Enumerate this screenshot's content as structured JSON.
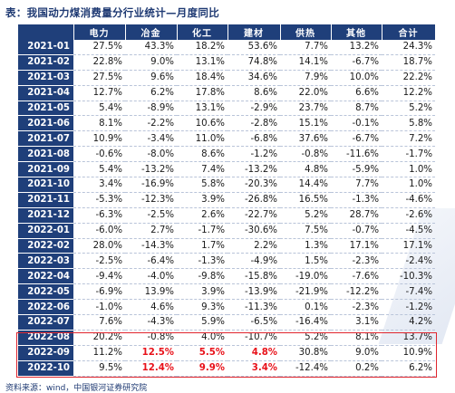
{
  "title": "表：我国动力煤消费量分行业统计—月度同比",
  "columns": [
    "电力",
    "冶金",
    "化工",
    "建材",
    "供热",
    "其他",
    "合计"
  ],
  "rows": [
    {
      "month": "2021-01",
      "values": [
        "27.5%",
        "43.3%",
        "18.2%",
        "53.6%",
        "7.7%",
        "13.2%",
        "24.3%"
      ]
    },
    {
      "month": "2021-02",
      "values": [
        "22.8%",
        "9.0%",
        "13.1%",
        "74.8%",
        "14.1%",
        "-6.7%",
        "18.7%"
      ]
    },
    {
      "month": "2021-03",
      "values": [
        "27.5%",
        "9.6%",
        "18.4%",
        "34.6%",
        "7.9%",
        "10.0%",
        "22.2%"
      ]
    },
    {
      "month": "2021-04",
      "values": [
        "12.7%",
        "6.2%",
        "17.8%",
        "8.6%",
        "22.0%",
        "6.6%",
        "12.2%"
      ]
    },
    {
      "month": "2021-05",
      "values": [
        "5.4%",
        "-8.9%",
        "13.1%",
        "-2.9%",
        "23.7%",
        "8.7%",
        "5.2%"
      ]
    },
    {
      "month": "2021-06",
      "values": [
        "8.1%",
        "-2.2%",
        "10.6%",
        "-2.8%",
        "15.1%",
        "-0.1%",
        "5.8%"
      ]
    },
    {
      "month": "2021-07",
      "values": [
        "10.9%",
        "-3.4%",
        "11.0%",
        "-6.8%",
        "37.6%",
        "-6.7%",
        "7.2%"
      ]
    },
    {
      "month": "2021-08",
      "values": [
        "-0.6%",
        "-8.0%",
        "8.6%",
        "-1.2%",
        "-0.8%",
        "-11.6%",
        "-1.7%"
      ]
    },
    {
      "month": "2021-09",
      "values": [
        "5.4%",
        "-13.2%",
        "7.4%",
        "-13.2%",
        "4.8%",
        "-5.9%",
        "1.0%"
      ]
    },
    {
      "month": "2021-10",
      "values": [
        "3.4%",
        "-16.9%",
        "5.8%",
        "-20.3%",
        "14.4%",
        "7.7%",
        "1.0%"
      ]
    },
    {
      "month": "2021-11",
      "values": [
        "-5.3%",
        "-12.3%",
        "3.9%",
        "-26.8%",
        "16.5%",
        "-1.3%",
        "-4.6%"
      ]
    },
    {
      "month": "2021-12",
      "values": [
        "-6.3%",
        "-2.5%",
        "2.6%",
        "-22.7%",
        "5.2%",
        "28.7%",
        "-2.6%"
      ]
    },
    {
      "month": "2022-01",
      "values": [
        "-6.0%",
        "2.7%",
        "-1.7%",
        "-30.6%",
        "7.5%",
        "-0.7%",
        "-4.5%"
      ]
    },
    {
      "month": "2022-02",
      "values": [
        "28.0%",
        "-14.3%",
        "1.7%",
        "2.2%",
        "1.3%",
        "17.1%",
        "17.1%"
      ]
    },
    {
      "month": "2022-03",
      "values": [
        "-2.5%",
        "-6.4%",
        "-1.3%",
        "-4.9%",
        "1.5%",
        "-2.3%",
        "-2.4%"
      ]
    },
    {
      "month": "2022-04",
      "values": [
        "-9.4%",
        "-4.0%",
        "-9.8%",
        "-15.8%",
        "-19.0%",
        "-7.6%",
        "-10.3%"
      ]
    },
    {
      "month": "2022-05",
      "values": [
        "-6.9%",
        "13.9%",
        "3.9%",
        "-13.9%",
        "-21.9%",
        "-12.2%",
        "-7.4%"
      ]
    },
    {
      "month": "2022-06",
      "values": [
        "-1.0%",
        "4.6%",
        "9.3%",
        "-11.3%",
        "0.1%",
        "-2.3%",
        "-1.2%"
      ]
    },
    {
      "month": "2022-07",
      "values": [
        "7.6%",
        "-4.3%",
        "5.9%",
        "-6.5%",
        "-16.4%",
        "3.1%",
        "4.2%"
      ]
    },
    {
      "month": "2022-08",
      "values": [
        "20.2%",
        "-0.8%",
        "4.0%",
        "-10.7%",
        "5.2%",
        "8.1%",
        "13.7%"
      ]
    },
    {
      "month": "2022-09",
      "values": [
        "11.2%",
        "12.5%",
        "5.5%",
        "4.8%",
        "30.8%",
        "9.0%",
        "10.9%"
      ],
      "highlight": [
        1,
        2,
        3
      ]
    },
    {
      "month": "2022-10",
      "values": [
        "9.5%",
        "12.4%",
        "9.9%",
        "3.4%",
        "-12.4%",
        "0.2%",
        "6.2%"
      ],
      "highlight": [
        1,
        2,
        3
      ]
    }
  ],
  "source": "资料来源：wind，中国银河证券研究院",
  "colors": {
    "header_bg": "#1f3f7a",
    "highlight_text": "#e8121a",
    "box_border": "#e0252d"
  }
}
